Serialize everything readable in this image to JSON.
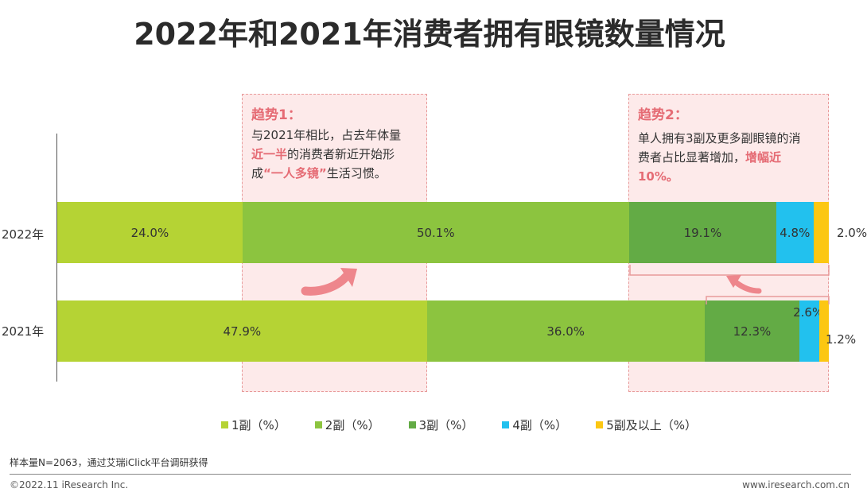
{
  "title": "2022年和2021年消费者拥有眼镜数量情况",
  "trend1": {
    "title": "趋势1：",
    "line1": "与2021年相比，占去年体量",
    "line2_hl": "近一半",
    "line2": "的消费者新近开始形",
    "line3_pre": "成",
    "line3_hl": "“一人多镜”",
    "line3_post": "生活习惯。"
  },
  "trend2": {
    "title": "趋势2：",
    "line1": "单人拥有3副及更多副眼镜的消",
    "line2": "费者占比显著增加，",
    "line2_hl": "增幅近",
    "line3_hl": "10%。"
  },
  "colors": {
    "s1": "#b5d334",
    "s2": "#8cc43f",
    "s3": "#63ab45",
    "s4": "#22c1ee",
    "s5": "#fcc712",
    "accent": "#e56b74"
  },
  "chart_data": {
    "type": "bar",
    "orientation": "horizontal-stacked-100",
    "categories": [
      "2022年",
      "2021年"
    ],
    "series": [
      {
        "name": "1副（%）",
        "values": [
          24.0,
          47.9
        ],
        "labels": [
          "24.0%",
          "47.9%"
        ]
      },
      {
        "name": "2副（%）",
        "values": [
          50.1,
          36.0
        ],
        "labels": [
          "50.1%",
          "36.0%"
        ]
      },
      {
        "name": "3副（%）",
        "values": [
          19.1,
          12.3
        ],
        "labels": [
          "19.1%",
          "12.3%"
        ]
      },
      {
        "name": "4副（%）",
        "values": [
          4.8,
          2.6
        ],
        "labels": [
          "4.8%",
          "2.6%"
        ]
      },
      {
        "name": "5副及以上（%）",
        "values": [
          2.0,
          1.2
        ],
        "labels": [
          "2.0%",
          "1.2%"
        ]
      }
    ],
    "legend_position": "bottom"
  },
  "footer": {
    "note": "样本量N=2063，通过艾瑞iClick平台调研获得",
    "copyright": "©2022.11 iResearch Inc.",
    "url": "www.iresearch.com.cn"
  }
}
